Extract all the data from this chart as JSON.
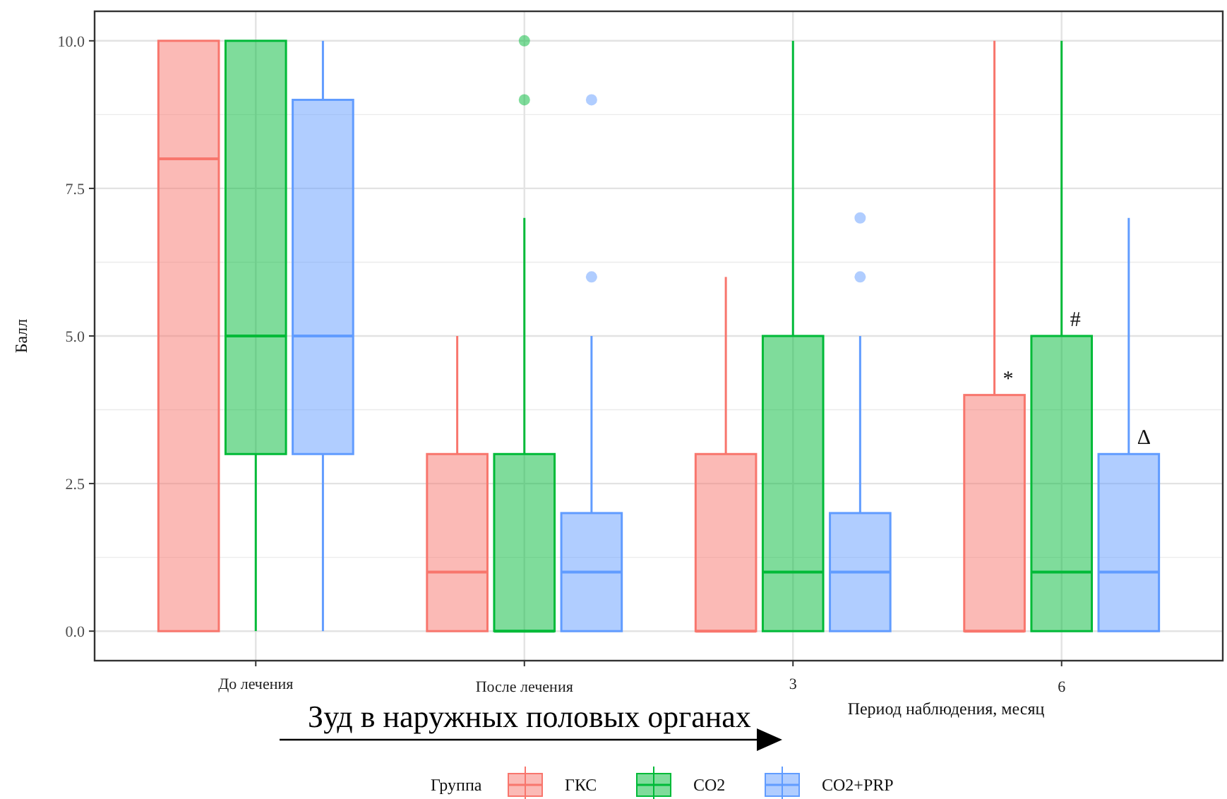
{
  "chart_data": {
    "type": "box",
    "xlabel": "Период наблюдения, месяц",
    "ylabel": "Балл",
    "legend_title": "Группа",
    "legend": "bottom",
    "grid": true,
    "categories": [
      "До лечения",
      "После лечения",
      "3",
      "6"
    ],
    "ylim": [
      -0.5,
      10.5
    ],
    "yticks": [
      {
        "value": 0,
        "label": "0.0"
      },
      {
        "value": 2.5,
        "label": "2.5"
      },
      {
        "value": 5,
        "label": "5.0"
      },
      {
        "value": 7.5,
        "label": "7.5"
      },
      {
        "value": 10,
        "label": "10.0"
      }
    ],
    "series": [
      {
        "name": "ГКС",
        "color": "#f8766d",
        "boxes": [
          {
            "low": 0,
            "q1": 0,
            "median": 8,
            "q3": 10,
            "high": 10
          },
          {
            "low": 0,
            "q1": 0,
            "median": 1,
            "q3": 3,
            "high": 5
          },
          {
            "low": 0,
            "q1": 0,
            "median": 0,
            "q3": 3,
            "high": 6
          },
          {
            "low": 0,
            "q1": 0,
            "median": 0,
            "q3": 4,
            "high": 10
          }
        ]
      },
      {
        "name": "CO2",
        "color": "#00ba38",
        "boxes": [
          {
            "low": 0,
            "q1": 3,
            "median": 5,
            "q3": 10,
            "high": 10
          },
          {
            "low": 0,
            "q1": 0,
            "median": 0,
            "q3": 3,
            "high": 7,
            "outliers": [
              9,
              10
            ]
          },
          {
            "low": 0,
            "q1": 0,
            "median": 1,
            "q3": 5,
            "high": 10
          },
          {
            "low": 0,
            "q1": 0,
            "median": 1,
            "q3": 5,
            "high": 10
          }
        ]
      },
      {
        "name": "CO2+PRP",
        "color": "#619cff",
        "boxes": [
          {
            "low": 0,
            "q1": 3,
            "median": 5,
            "q3": 9,
            "high": 10
          },
          {
            "low": 0,
            "q1": 0,
            "median": 1,
            "q3": 2,
            "high": 5,
            "outliers": [
              6,
              9
            ]
          },
          {
            "low": 0,
            "q1": 0,
            "median": 1,
            "q3": 2,
            "high": 5,
            "outliers": [
              6,
              7
            ]
          },
          {
            "low": 0,
            "q1": 0,
            "median": 1,
            "q3": 3,
            "high": 7
          }
        ]
      }
    ],
    "annotations": [
      "*",
      "#",
      "Δ",
      "Зуд в наружных половых органах"
    ]
  }
}
